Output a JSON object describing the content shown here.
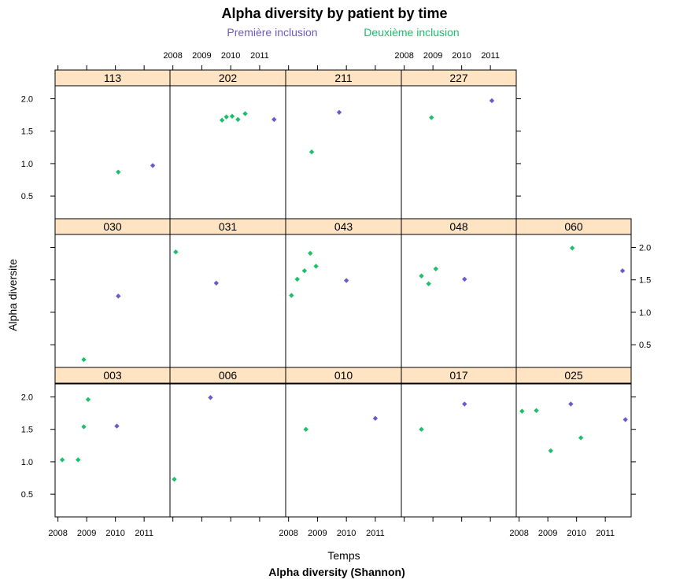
{
  "chart_data": {
    "type": "scatter",
    "title": "Alpha diversity by patient by time",
    "subtitle": "Alpha diversity (Shannon)",
    "xlabel": "Temps",
    "ylabel": "Alpha diversite",
    "xlim": [
      2007.9,
      2011.9
    ],
    "ylim": [
      0.15,
      2.2
    ],
    "x_ticks": [
      2008,
      2009,
      2010,
      2011
    ],
    "y_ticks": [
      0.5,
      1.0,
      1.5,
      2.0
    ],
    "x_tick_labels": [
      "2008",
      "2009",
      "2010",
      "2011"
    ],
    "y_tick_labels": [
      "0.5",
      "1.0",
      "1.5",
      "2.0"
    ],
    "grid": false,
    "legend_position": "top",
    "series": [
      {
        "name": "Première inclusion",
        "color": "#6a5acd"
      },
      {
        "name": "Deuxième inclusion",
        "color": "#1dbf6b"
      }
    ],
    "panels": [
      {
        "label": "113",
        "points": [
          {
            "x": 2010.1,
            "y": 0.87,
            "s": 1
          },
          {
            "x": 2011.3,
            "y": 0.97,
            "s": 0
          }
        ]
      },
      {
        "label": "202",
        "points": [
          {
            "x": 2009.7,
            "y": 1.67,
            "s": 1
          },
          {
            "x": 2009.85,
            "y": 1.72,
            "s": 1
          },
          {
            "x": 2010.05,
            "y": 1.73,
            "s": 1
          },
          {
            "x": 2010.25,
            "y": 1.68,
            "s": 1
          },
          {
            "x": 2010.5,
            "y": 1.77,
            "s": 1
          },
          {
            "x": 2011.5,
            "y": 1.68,
            "s": 0
          }
        ]
      },
      {
        "label": "211",
        "points": [
          {
            "x": 2008.8,
            "y": 1.18,
            "s": 1
          },
          {
            "x": 2009.75,
            "y": 1.79,
            "s": 0
          }
        ]
      },
      {
        "label": "227",
        "points": [
          {
            "x": 2008.95,
            "y": 1.71,
            "s": 1
          },
          {
            "x": 2011.05,
            "y": 1.97,
            "s": 0
          }
        ]
      },
      {
        "label": "030",
        "points": [
          {
            "x": 2008.9,
            "y": 0.27,
            "s": 1
          },
          {
            "x": 2010.1,
            "y": 1.25,
            "s": 0
          }
        ]
      },
      {
        "label": "031",
        "points": [
          {
            "x": 2008.1,
            "y": 1.93,
            "s": 1
          },
          {
            "x": 2009.5,
            "y": 1.45,
            "s": 0
          }
        ]
      },
      {
        "label": "043",
        "points": [
          {
            "x": 2008.1,
            "y": 1.26,
            "s": 1
          },
          {
            "x": 2008.3,
            "y": 1.51,
            "s": 1
          },
          {
            "x": 2008.55,
            "y": 1.64,
            "s": 1
          },
          {
            "x": 2008.75,
            "y": 1.91,
            "s": 1
          },
          {
            "x": 2008.95,
            "y": 1.71,
            "s": 1
          },
          {
            "x": 2010.0,
            "y": 1.49,
            "s": 0
          }
        ]
      },
      {
        "label": "048",
        "points": [
          {
            "x": 2008.6,
            "y": 1.56,
            "s": 1
          },
          {
            "x": 2008.85,
            "y": 1.44,
            "s": 1
          },
          {
            "x": 2009.1,
            "y": 1.67,
            "s": 1
          },
          {
            "x": 2010.1,
            "y": 1.51,
            "s": 0
          }
        ]
      },
      {
        "label": "060",
        "points": [
          {
            "x": 2009.85,
            "y": 1.99,
            "s": 1
          },
          {
            "x": 2011.6,
            "y": 1.64,
            "s": 0
          }
        ]
      },
      {
        "label": "003",
        "points": [
          {
            "x": 2008.15,
            "y": 1.03,
            "s": 1
          },
          {
            "x": 2008.7,
            "y": 1.03,
            "s": 1
          },
          {
            "x": 2008.9,
            "y": 1.54,
            "s": 1
          },
          {
            "x": 2009.05,
            "y": 1.96,
            "s": 1
          },
          {
            "x": 2010.05,
            "y": 1.55,
            "s": 0
          }
        ]
      },
      {
        "label": "006",
        "points": [
          {
            "x": 2008.05,
            "y": 0.73,
            "s": 1
          },
          {
            "x": 2009.3,
            "y": 1.99,
            "s": 0
          }
        ]
      },
      {
        "label": "010",
        "points": [
          {
            "x": 2008.6,
            "y": 1.5,
            "s": 1
          },
          {
            "x": 2011.0,
            "y": 1.67,
            "s": 0
          }
        ]
      },
      {
        "label": "017",
        "points": [
          {
            "x": 2008.6,
            "y": 1.5,
            "s": 1
          },
          {
            "x": 2010.1,
            "y": 1.89,
            "s": 0
          }
        ]
      },
      {
        "label": "025",
        "points": [
          {
            "x": 2008.1,
            "y": 1.78,
            "s": 1
          },
          {
            "x": 2008.6,
            "y": 1.79,
            "s": 1
          },
          {
            "x": 2009.1,
            "y": 1.17,
            "s": 1
          },
          {
            "x": 2009.8,
            "y": 1.89,
            "s": 0
          },
          {
            "x": 2010.15,
            "y": 1.37,
            "s": 1
          },
          {
            "x": 2011.7,
            "y": 1.65,
            "s": 0
          }
        ]
      }
    ]
  }
}
